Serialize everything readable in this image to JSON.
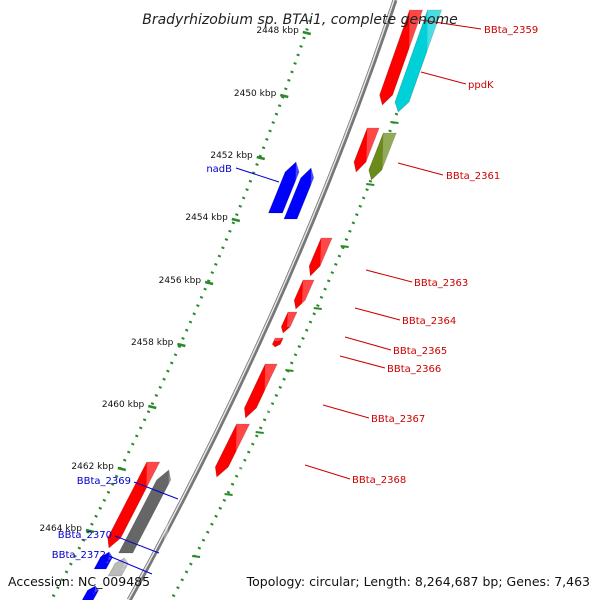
{
  "title": "Bradyrhizobium sp. BTAi1, complete genome",
  "footer": {
    "accession": "Accession: NC_009485",
    "summary": "Topology: circular; Length: 8,264,687 bp; Genes: 7,463"
  },
  "colors": {
    "backbone": "#8a8a8a",
    "tick": "#2a8a2a",
    "label_red": "#cc0000",
    "label_blue": "#0000cc"
  },
  "ticks": [
    {
      "label": "2448 kbp"
    },
    {
      "label": "2450 kbp"
    },
    {
      "label": "2452 kbp"
    },
    {
      "label": "2454 kbp"
    },
    {
      "label": "2456 kbp"
    },
    {
      "label": "2458 kbp"
    },
    {
      "label": "2460 kbp"
    },
    {
      "label": "2462 kbp"
    },
    {
      "label": "2464 kbp"
    }
  ],
  "genes": [
    {
      "name": "BBta_2359",
      "color": "#ff0000",
      "strand": "forward"
    },
    {
      "name": "ppdK",
      "color": "#00d0d8",
      "strand": "forward"
    },
    {
      "name": "",
      "color": "#ff0000",
      "strand": "forward"
    },
    {
      "name": "BBta_2361",
      "color": "#6a8a1a",
      "strand": "forward"
    },
    {
      "name": "nadB",
      "color": "#0000ff",
      "strand": "reverse"
    },
    {
      "name": "",
      "color": "#0000ff",
      "strand": "reverse"
    },
    {
      "name": "",
      "color": "#ff0000",
      "strand": "forward"
    },
    {
      "name": "BBta_2363",
      "color": "#ff0000",
      "strand": "forward"
    },
    {
      "name": "BBta_2364",
      "color": "#ff0000",
      "strand": "forward"
    },
    {
      "name": "BBta_2365",
      "color": "#ff0000",
      "strand": "forward"
    },
    {
      "name": "BBta_2366",
      "color": "#ff0000",
      "strand": "forward"
    },
    {
      "name": "BBta_2367",
      "color": "#ff0000",
      "strand": "forward"
    },
    {
      "name": "BBta_2368",
      "color": "#ff0000",
      "strand": "forward"
    },
    {
      "name": "",
      "color": "#666666",
      "strand": "reverse"
    },
    {
      "name": "BBta_2369",
      "color": "#0000ff",
      "strand": "reverse"
    },
    {
      "name": "BBta_2370",
      "color": "#bbbbbb",
      "strand": "reverse"
    },
    {
      "name": "BBta_2372",
      "color": "#0000ff",
      "strand": "reverse"
    }
  ]
}
